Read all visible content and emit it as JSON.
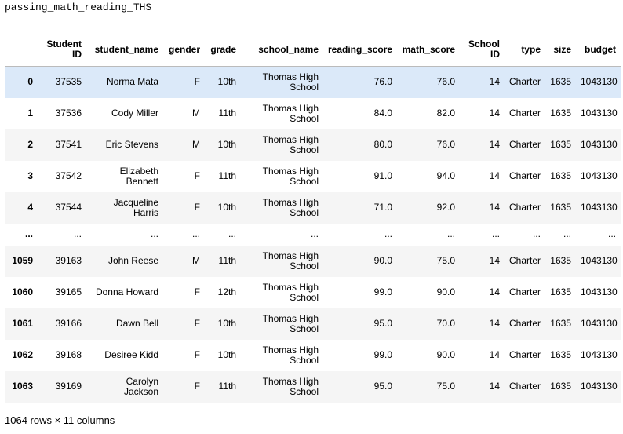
{
  "code": "passing_math_reading_THS",
  "table": {
    "columns": [
      "Student ID",
      "student_name",
      "gender",
      "grade",
      "school_name",
      "reading_score",
      "math_score",
      "School ID",
      "type",
      "size",
      "budget"
    ],
    "rows": [
      {
        "index": "0",
        "cells": [
          "37535",
          "Norma Mata",
          "F",
          "10th",
          "Thomas High School",
          "76.0",
          "76.0",
          "14",
          "Charter",
          "1635",
          "1043130"
        ]
      },
      {
        "index": "1",
        "cells": [
          "37536",
          "Cody Miller",
          "M",
          "11th",
          "Thomas High School",
          "84.0",
          "82.0",
          "14",
          "Charter",
          "1635",
          "1043130"
        ]
      },
      {
        "index": "2",
        "cells": [
          "37541",
          "Eric Stevens",
          "M",
          "10th",
          "Thomas High School",
          "80.0",
          "76.0",
          "14",
          "Charter",
          "1635",
          "1043130"
        ]
      },
      {
        "index": "3",
        "cells": [
          "37542",
          "Elizabeth Bennett",
          "F",
          "11th",
          "Thomas High School",
          "91.0",
          "94.0",
          "14",
          "Charter",
          "1635",
          "1043130"
        ]
      },
      {
        "index": "4",
        "cells": [
          "37544",
          "Jacqueline Harris",
          "F",
          "10th",
          "Thomas High School",
          "71.0",
          "92.0",
          "14",
          "Charter",
          "1635",
          "1043130"
        ]
      },
      {
        "index": "...",
        "cells": [
          "...",
          "...",
          "...",
          "...",
          "...",
          "...",
          "...",
          "...",
          "...",
          "...",
          "..."
        ]
      },
      {
        "index": "1059",
        "cells": [
          "39163",
          "John Reese",
          "M",
          "11th",
          "Thomas High School",
          "90.0",
          "75.0",
          "14",
          "Charter",
          "1635",
          "1043130"
        ]
      },
      {
        "index": "1060",
        "cells": [
          "39165",
          "Donna Howard",
          "F",
          "12th",
          "Thomas High School",
          "99.0",
          "90.0",
          "14",
          "Charter",
          "1635",
          "1043130"
        ]
      },
      {
        "index": "1061",
        "cells": [
          "39166",
          "Dawn Bell",
          "F",
          "10th",
          "Thomas High School",
          "95.0",
          "70.0",
          "14",
          "Charter",
          "1635",
          "1043130"
        ]
      },
      {
        "index": "1062",
        "cells": [
          "39168",
          "Desiree Kidd",
          "F",
          "10th",
          "Thomas High School",
          "99.0",
          "90.0",
          "14",
          "Charter",
          "1635",
          "1043130"
        ]
      },
      {
        "index": "1063",
        "cells": [
          "39169",
          "Carolyn Jackson",
          "F",
          "11th",
          "Thomas High School",
          "95.0",
          "75.0",
          "14",
          "Charter",
          "1635",
          "1043130"
        ]
      }
    ]
  },
  "footer": "1064 rows × 11 columns"
}
